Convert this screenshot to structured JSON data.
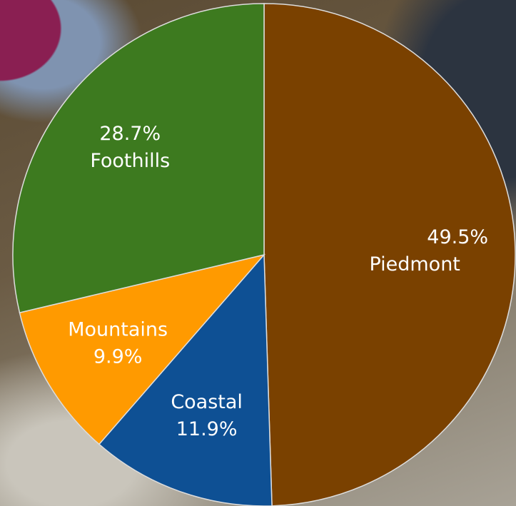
{
  "chart_data": {
    "type": "pie",
    "categories": [
      "Piedmont",
      "Coastal",
      "Mountains",
      "Foothills"
    ],
    "values": [
      49.5,
      11.9,
      9.9,
      28.7
    ],
    "value_labels": [
      "49.5%",
      "11.9%",
      "9.9%",
      "28.7%"
    ],
    "colors": [
      "#7a4100",
      "#0e5094",
      "#ff9a00",
      "#3d7a1f"
    ]
  }
}
